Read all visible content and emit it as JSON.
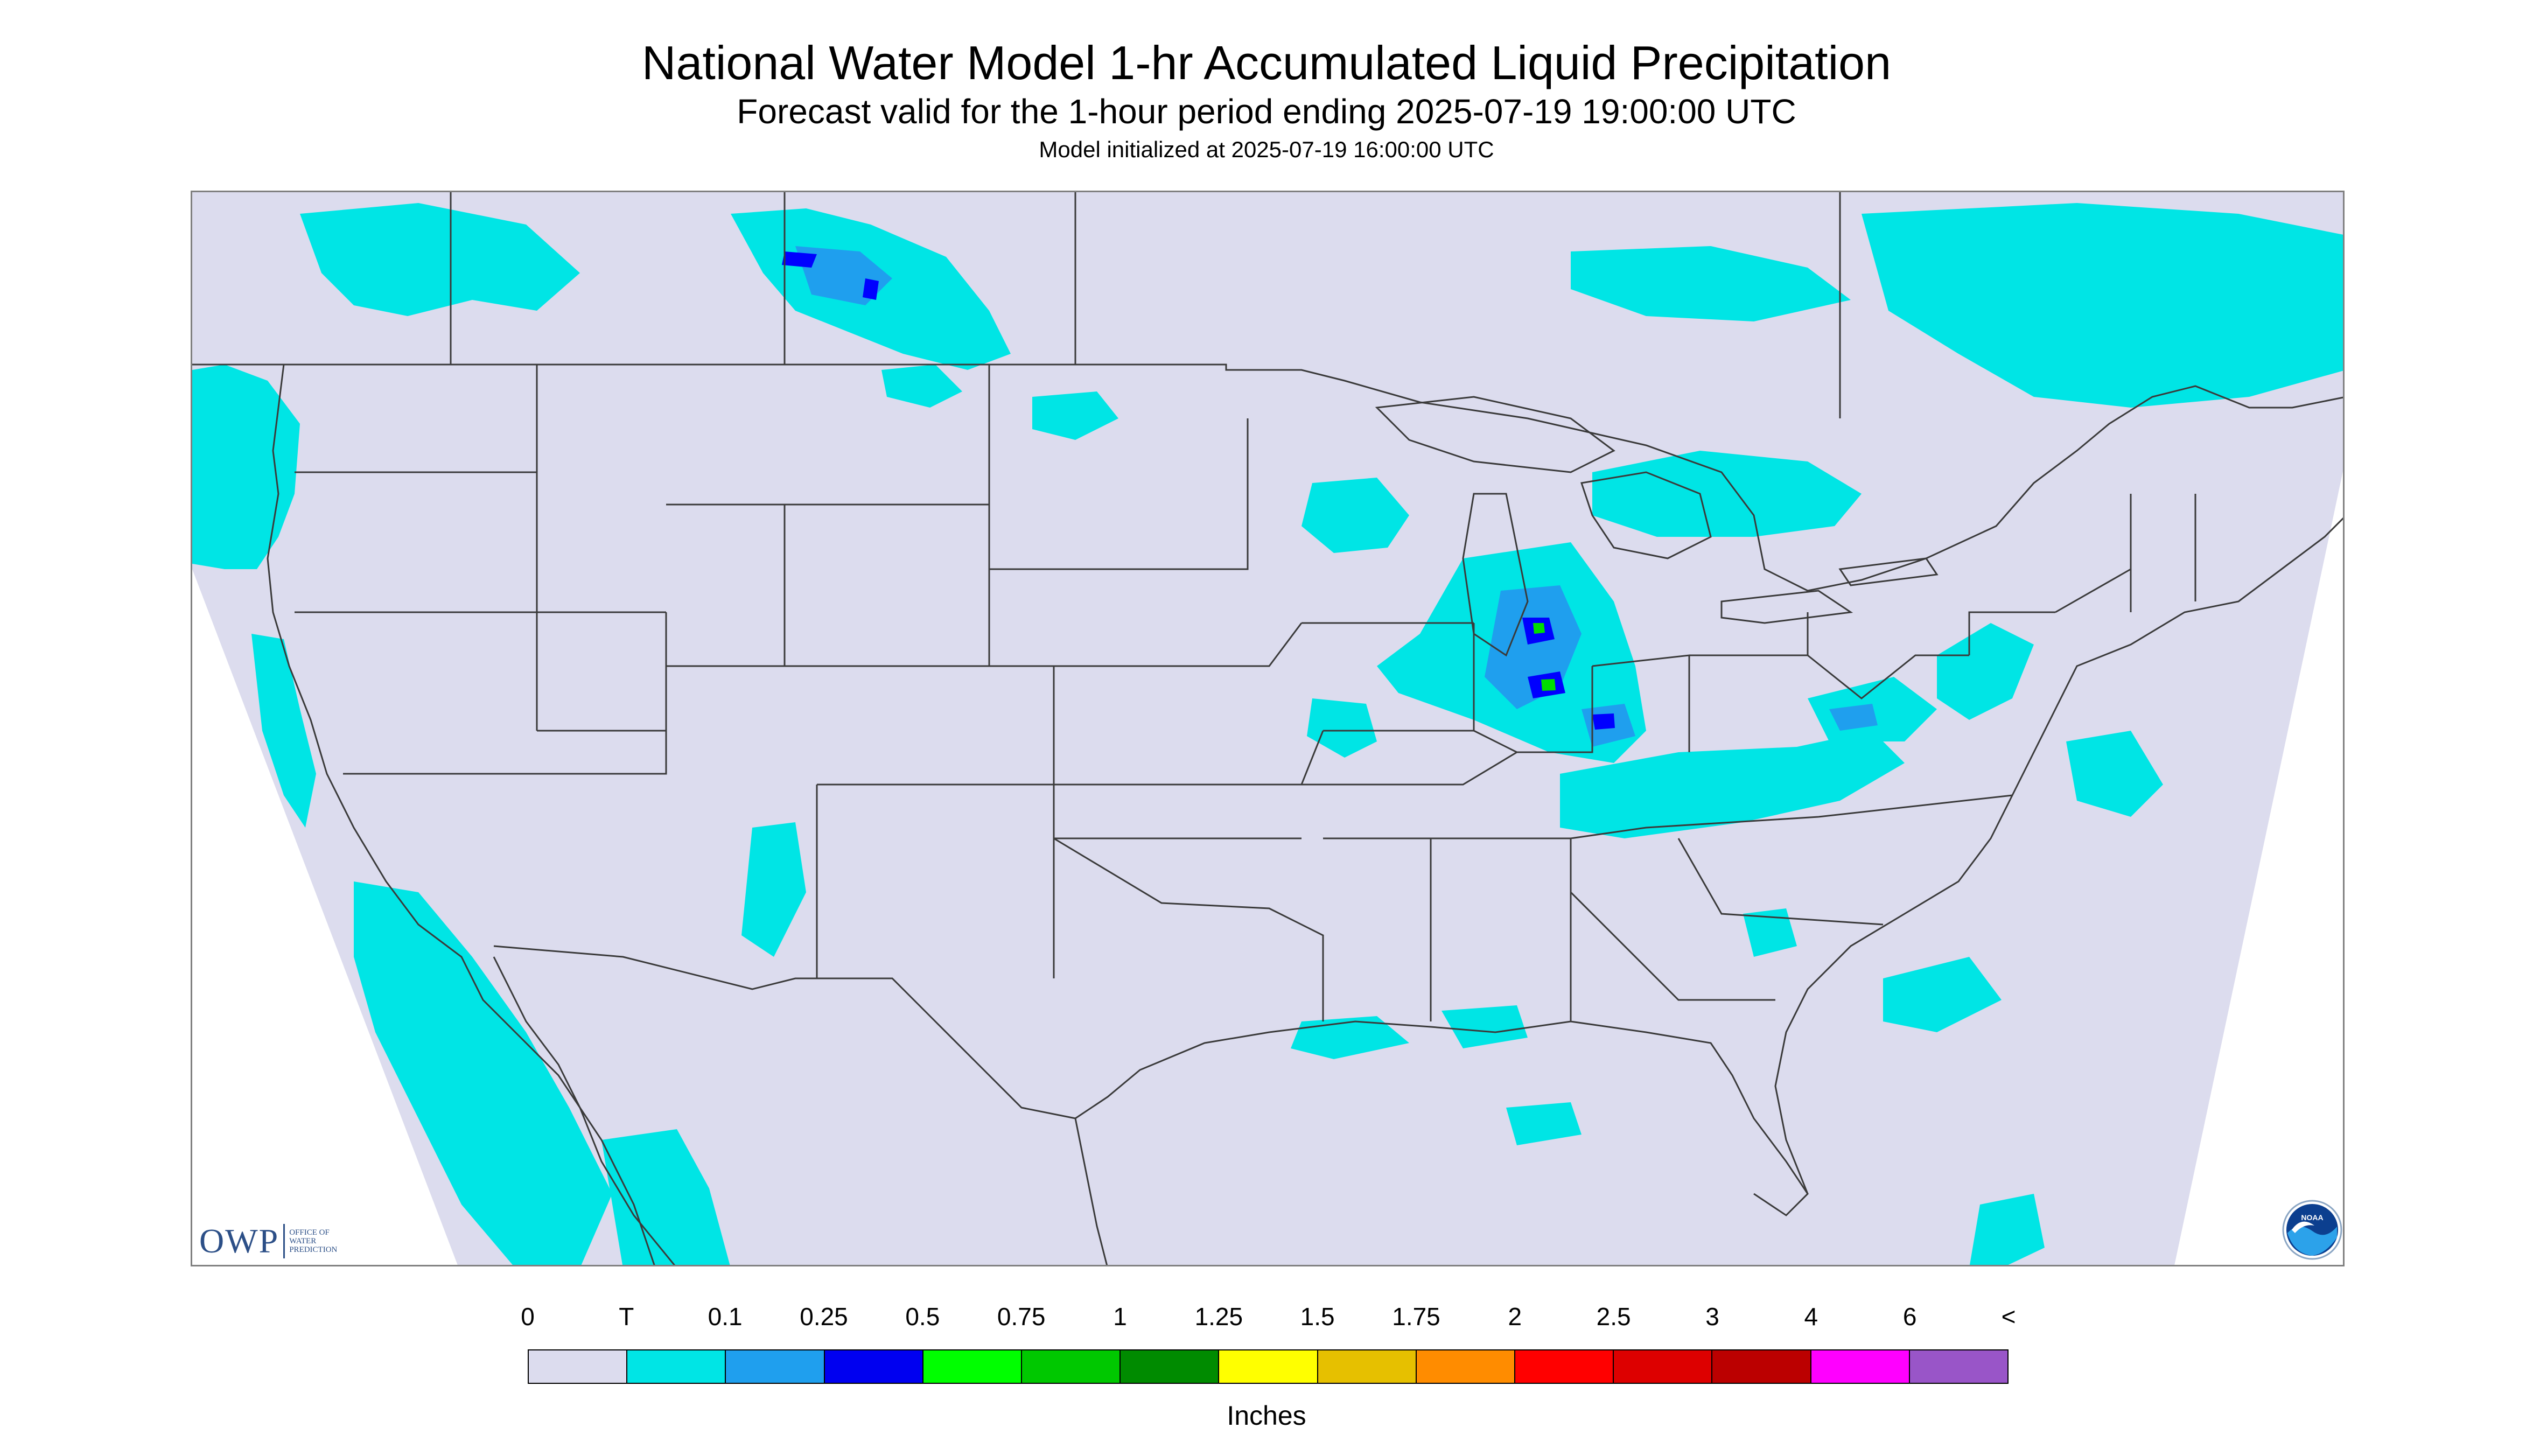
{
  "header": {
    "title": "National Water Model 1-hr Accumulated Liquid Precipitation",
    "subtitle": "Forecast valid for the 1-hour period ending 2025-07-19 19:00:00 UTC",
    "init_line": "Model initialized at 2025-07-19 16:00:00 UTC"
  },
  "map": {
    "background_color": "#dcdcee",
    "outside_color": "#ffffff",
    "line_color": "#3a3a3a",
    "light_rain_color": "#00e5e5",
    "moderate_rain_color": "#1f9fee",
    "heavy_rain_color": "#0000ff",
    "heavier_rain_color": "#00dd00"
  },
  "logos": {
    "owp": {
      "text": "OWP",
      "subtext": "Office of\nWater\nPrediction"
    },
    "noaa": {
      "text": "NOAA",
      "icon": "noaa-emblem-icon"
    }
  },
  "legend": {
    "labels": [
      "0",
      "T",
      "0.1",
      "0.25",
      "0.5",
      "0.75",
      "1",
      "1.25",
      "1.5",
      "1.75",
      "2",
      "2.5",
      "3",
      "4",
      "6",
      "<"
    ],
    "colors": [
      "#dcdcee",
      "#00e5e5",
      "#1f9fee",
      "#0000f0",
      "#00ff00",
      "#00c800",
      "#008b00",
      "#ffff00",
      "#e6c000",
      "#ff8c00",
      "#ff0000",
      "#dd0000",
      "#bb0000",
      "#ff00ff",
      "#9955c8"
    ],
    "units": "Inches"
  }
}
